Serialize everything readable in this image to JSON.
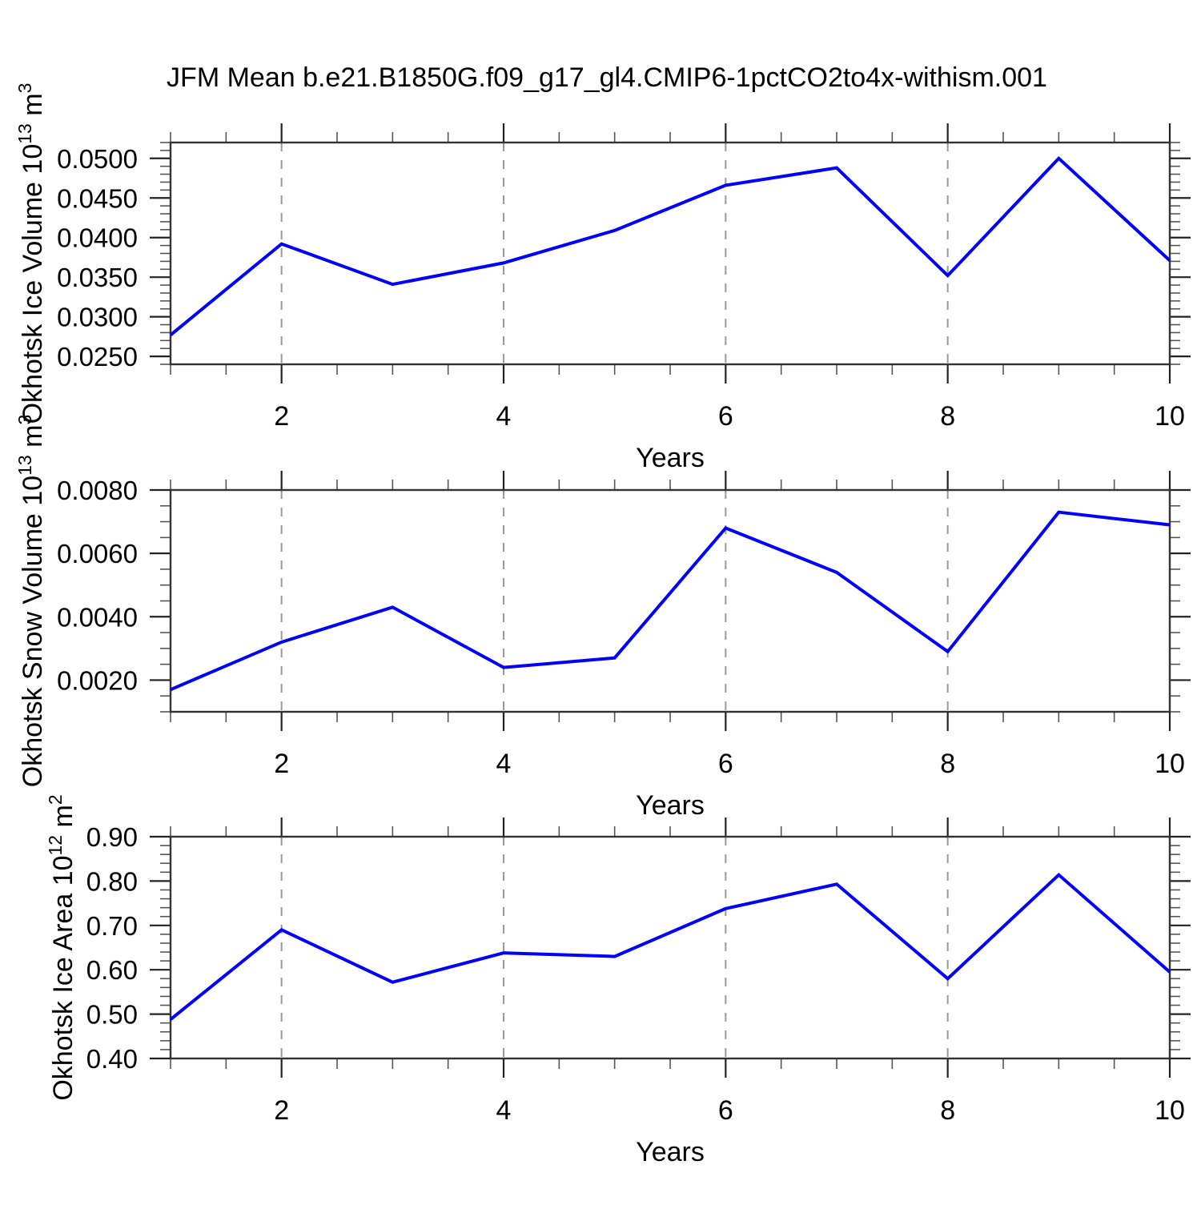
{
  "page": {
    "title": "JFM Mean b.e21.B1850G.f09_g17_gl4.CMIP6-1pctCO2to4x-withism.001"
  },
  "styles": {
    "line_color": "#0000ff",
    "grid_color": "#999999",
    "frame_color": "#333333",
    "major_tick_color": "#222222",
    "minor_tick_color": "#555555"
  },
  "chart_data": [
    {
      "type": "line",
      "title": "",
      "series_name": "Okhotsk Ice Volume",
      "x": [
        1,
        2,
        3,
        4,
        5,
        6,
        7,
        8,
        9,
        10
      ],
      "values": [
        0.0277,
        0.0392,
        0.0341,
        0.0368,
        0.0409,
        0.0466,
        0.0488,
        0.0352,
        0.05,
        0.0371
      ],
      "xlabel": "Years",
      "ylabel": "Okhotsk Ice Volume 10^13 m^3",
      "ylabel_rich": [
        {
          "t": "Okhotsk Ice Volume 10"
        },
        {
          "t": "13",
          "sup": true
        },
        {
          "t": " m"
        },
        {
          "t": "3",
          "sup": true
        }
      ],
      "xlim": [
        1,
        10
      ],
      "ylim": [
        0.024,
        0.052
      ],
      "xticks": [
        2,
        4,
        6,
        8,
        10
      ],
      "xtick_labels": [
        "2",
        "4",
        "6",
        "8",
        "10"
      ],
      "x_minor_step": 0.5,
      "yticks": [
        0.025,
        0.03,
        0.035,
        0.04,
        0.045,
        0.05
      ],
      "ytick_labels": [
        "0.0250",
        "0.0300",
        "0.0350",
        "0.0400",
        "0.0450",
        "0.0500"
      ],
      "y_minor_step": 0.001,
      "grid_x": [
        2,
        4,
        6,
        8
      ],
      "grid_on": "x-dashed",
      "legend": "none",
      "ylabel_x": 52
    },
    {
      "type": "line",
      "title": "",
      "series_name": "Okhotsk Snow Volume",
      "x": [
        1,
        2,
        3,
        4,
        5,
        6,
        7,
        8,
        9,
        10
      ],
      "values": [
        0.0017,
        0.0032,
        0.0043,
        0.0024,
        0.0027,
        0.0068,
        0.0054,
        0.0029,
        0.0073,
        0.0069
      ],
      "xlabel": "Years",
      "ylabel": "Okhotsk Snow Volume 10^13 m^3",
      "ylabel_rich": [
        {
          "t": "Okhotsk Snow Volume 10"
        },
        {
          "t": "13",
          "sup": true
        },
        {
          "t": " m"
        },
        {
          "t": "3",
          "sup": true
        }
      ],
      "xlim": [
        1,
        10
      ],
      "ylim": [
        0.001,
        0.008
      ],
      "xticks": [
        2,
        4,
        6,
        8,
        10
      ],
      "xtick_labels": [
        "2",
        "4",
        "6",
        "8",
        "10"
      ],
      "x_minor_step": 0.5,
      "yticks": [
        0.002,
        0.004,
        0.006,
        0.008
      ],
      "ytick_labels": [
        "0.0020",
        "0.0040",
        "0.0060",
        "0.0080"
      ],
      "y_minor_step": 0.0005,
      "grid_x": [
        2,
        4,
        6,
        8
      ],
      "grid_on": "x-dashed",
      "legend": "none",
      "ylabel_x": 52
    },
    {
      "type": "line",
      "title": "",
      "series_name": "Okhotsk Ice Area",
      "x": [
        1,
        2,
        3,
        4,
        5,
        6,
        7,
        8,
        9,
        10
      ],
      "values": [
        0.488,
        0.69,
        0.572,
        0.638,
        0.63,
        0.738,
        0.793,
        0.58,
        0.814,
        0.595
      ],
      "xlabel": "Years",
      "ylabel": "Okhotsk Ice Area 10^12 m^2",
      "ylabel_rich": [
        {
          "t": "Okhotsk Ice Area 10"
        },
        {
          "t": "12",
          "sup": true
        },
        {
          "t": " m"
        },
        {
          "t": "2",
          "sup": true
        }
      ],
      "xlim": [
        1,
        10
      ],
      "ylim": [
        0.4,
        0.9
      ],
      "xticks": [
        2,
        4,
        6,
        8,
        10
      ],
      "xtick_labels": [
        "2",
        "4",
        "6",
        "8",
        "10"
      ],
      "x_minor_step": 0.5,
      "yticks": [
        0.4,
        0.5,
        0.6,
        0.7,
        0.8,
        0.9
      ],
      "ytick_labels": [
        "0.40",
        "0.50",
        "0.60",
        "0.70",
        "0.80",
        "0.90"
      ],
      "y_minor_step": 0.02,
      "grid_x": [
        2,
        4,
        6,
        8
      ],
      "grid_on": "x-dashed",
      "legend": "none",
      "ylabel_x": 90
    }
  ]
}
